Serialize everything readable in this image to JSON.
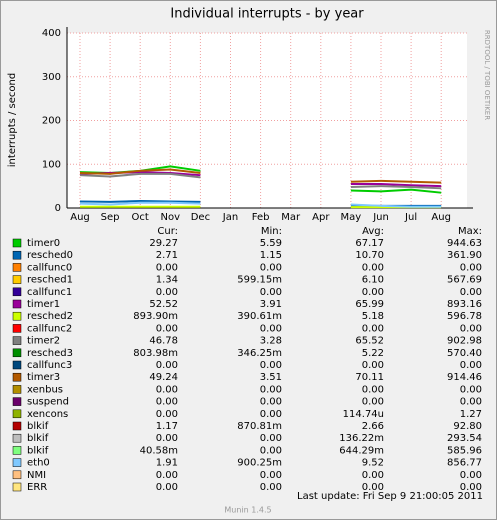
{
  "chart_data": {
    "type": "line",
    "title": "Individual interrupts - by year",
    "y_label": "interrupts / second",
    "side_label": "RRDTOOL / TOBI OETIKER",
    "categories": [
      "Aug",
      "Sep",
      "Oct",
      "Nov",
      "Dec",
      "Jan",
      "Feb",
      "Mar",
      "Apr",
      "May",
      "Jun",
      "Jul",
      "Aug"
    ],
    "ylim": [
      0,
      400
    ],
    "yticks": [
      0,
      100,
      200,
      300,
      400
    ],
    "grid": true,
    "columns": [
      "Cur:",
      "Min:",
      "Avg:",
      "Max:"
    ],
    "series": [
      {
        "name": "timer0",
        "color": "#00cc00",
        "cur": "29.27",
        "min": "5.59",
        "avg": "67.17",
        "max": "944.63",
        "values": [
          82,
          80,
          85,
          95,
          85,
          null,
          null,
          null,
          null,
          40,
          38,
          42,
          35
        ]
      },
      {
        "name": "resched0",
        "color": "#0066b3",
        "cur": "2.71",
        "min": "1.15",
        "avg": "10.70",
        "max": "361.90",
        "values": [
          15,
          14,
          16,
          15,
          14,
          null,
          null,
          null,
          null,
          5,
          5,
          5,
          5
        ]
      },
      {
        "name": "callfunc0",
        "color": "#ff8000",
        "cur": "0.00",
        "min": "0.00",
        "avg": "0.00",
        "max": "0.00"
      },
      {
        "name": "resched1",
        "color": "#ffcc00",
        "cur": "1.34",
        "min": "599.15m",
        "avg": "6.10",
        "max": "567.69"
      },
      {
        "name": "callfunc1",
        "color": "#330099",
        "cur": "0.00",
        "min": "0.00",
        "avg": "0.00",
        "max": "0.00"
      },
      {
        "name": "timer1",
        "color": "#990099",
        "cur": "52.52",
        "min": "3.91",
        "avg": "65.99",
        "max": "893.16",
        "values": [
          78,
          80,
          82,
          80,
          75,
          null,
          null,
          null,
          null,
          55,
          55,
          52,
          50
        ]
      },
      {
        "name": "resched2",
        "color": "#ccff00",
        "cur": "893.90m",
        "min": "390.61m",
        "avg": "5.18",
        "max": "596.78",
        "values": [
          3,
          3,
          3,
          3,
          3,
          null,
          null,
          null,
          null,
          2,
          2,
          2,
          2
        ]
      },
      {
        "name": "callfunc2",
        "color": "#ff0000",
        "cur": "0.00",
        "min": "0.00",
        "avg": "0.00",
        "max": "0.00"
      },
      {
        "name": "timer2",
        "color": "#808080",
        "cur": "46.78",
        "min": "3.28",
        "avg": "65.52",
        "max": "902.98",
        "values": [
          75,
          72,
          78,
          78,
          70,
          null,
          null,
          null,
          null,
          48,
          50,
          48,
          45
        ]
      },
      {
        "name": "resched3",
        "color": "#008f00",
        "cur": "803.98m",
        "min": "346.25m",
        "avg": "5.22",
        "max": "570.40"
      },
      {
        "name": "callfunc3",
        "color": "#00487d",
        "cur": "0.00",
        "min": "0.00",
        "avg": "0.00",
        "max": "0.00"
      },
      {
        "name": "timer3",
        "color": "#b35a00",
        "cur": "49.24",
        "min": "3.51",
        "avg": "70.11",
        "max": "914.46",
        "values": [
          80,
          78,
          85,
          88,
          80,
          null,
          null,
          null,
          null,
          60,
          62,
          60,
          58
        ]
      },
      {
        "name": "xenbus",
        "color": "#b38f00",
        "cur": "0.00",
        "min": "0.00",
        "avg": "0.00",
        "max": "0.00"
      },
      {
        "name": "suspend",
        "color": "#6b006b",
        "cur": "0.00",
        "min": "0.00",
        "avg": "0.00",
        "max": "0.00"
      },
      {
        "name": "xencons",
        "color": "#8fb300",
        "cur": "0.00",
        "min": "0.00",
        "avg": "114.74u",
        "max": "1.27"
      },
      {
        "name": "blkif",
        "color": "#b30000",
        "cur": "1.17",
        "min": "870.81m",
        "avg": "2.66",
        "max": "92.80"
      },
      {
        "name": "blkif",
        "color": "#bebebe",
        "cur": "0.00",
        "min": "0.00",
        "avg": "136.22m",
        "max": "293.54"
      },
      {
        "name": "blkif",
        "color": "#80ff80",
        "cur": "40.58m",
        "min": "0.00",
        "avg": "644.29m",
        "max": "585.96"
      },
      {
        "name": "eth0",
        "color": "#80c9ff",
        "cur": "1.91",
        "min": "900.25m",
        "avg": "9.52",
        "max": "856.77",
        "values": [
          10,
          8,
          12,
          12,
          10,
          null,
          null,
          null,
          null,
          8,
          5,
          3,
          3
        ]
      },
      {
        "name": "NMI",
        "color": "#ffc080",
        "cur": "0.00",
        "min": "0.00",
        "avg": "0.00",
        "max": "0.00"
      },
      {
        "name": "ERR",
        "color": "#ffe680",
        "cur": "0.00",
        "min": "0.00",
        "avg": "0.00",
        "max": "0.00"
      }
    ],
    "last_update": "Last update:  Fri Sep  9 21:00:05 2011",
    "footer": "Munin 1.4.5"
  }
}
